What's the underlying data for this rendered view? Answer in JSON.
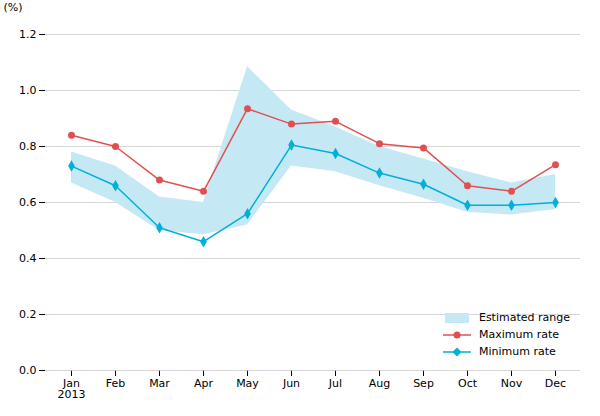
{
  "chart_data": {
    "type": "line",
    "categories": [
      "Jan\n2013",
      "Feb",
      "Mar",
      "Apr",
      "May",
      "Jun",
      "Jul",
      "Aug",
      "Sep",
      "Oct",
      "Nov",
      "Dec"
    ],
    "series": [
      {
        "name": "Estimated range",
        "type": "area",
        "color": "#c5e8f5",
        "lower": [
          0.67,
          0.6,
          0.5,
          0.485,
          0.52,
          0.73,
          0.71,
          0.66,
          0.615,
          0.565,
          0.555,
          0.575
        ],
        "upper": [
          0.78,
          0.73,
          0.62,
          0.6,
          1.085,
          0.93,
          0.87,
          0.8,
          0.755,
          0.71,
          0.67,
          0.7
        ]
      },
      {
        "name": "Maximum rate",
        "type": "line",
        "color": "#e05050",
        "marker": "circle",
        "values": [
          0.84,
          0.8,
          0.68,
          0.64,
          0.935,
          0.88,
          0.89,
          0.81,
          0.795,
          0.66,
          0.64,
          0.735
        ]
      },
      {
        "name": "Minimum rate",
        "type": "line",
        "color": "#00b0d8",
        "marker": "diamond",
        "values": [
          0.73,
          0.66,
          0.51,
          0.46,
          0.56,
          0.805,
          0.775,
          0.705,
          0.665,
          0.59,
          0.59,
          0.6
        ]
      }
    ],
    "ylabel": "(%)",
    "ylim": [
      0.0,
      1.2
    ],
    "yticks": [
      {
        "value": 0,
        "label": "0.0"
      },
      0.2,
      0.4,
      0.6,
      0.8,
      {
        "value": 1,
        "label": "1.0"
      },
      1.2
    ],
    "grid": true,
    "legend": "lower right"
  }
}
